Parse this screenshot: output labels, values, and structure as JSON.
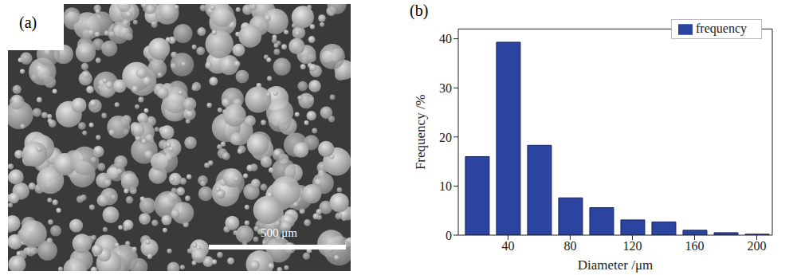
{
  "image": {
    "label": "(a)",
    "scale_bar": "500 μm"
  },
  "chart_data": {
    "type": "bar",
    "title": "(b)",
    "x_label": "Diameter /μm",
    "y_label": "Frequency /%",
    "bins": [
      10,
      30,
      50,
      70,
      90,
      110,
      130,
      150,
      170,
      190,
      210
    ],
    "series": [
      {
        "name": "frequency",
        "color": "#2b44a0",
        "values": [
          16,
          39.3,
          18.3,
          7.6,
          5.6,
          3.1,
          2.7,
          1.0,
          0.5,
          0.2
        ]
      }
    ],
    "xlim": [
      8,
      210
    ],
    "xticks": [
      40,
      80,
      120,
      160,
      200
    ],
    "ylim": [
      0,
      42
    ],
    "yticks": [
      0,
      10,
      20,
      30,
      40
    ],
    "grid": false,
    "legend": "upper right"
  }
}
